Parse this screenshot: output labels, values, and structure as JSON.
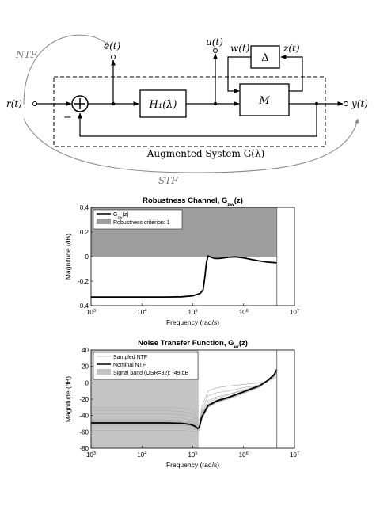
{
  "diagram": {
    "labels": {
      "ntf": "NTF",
      "stf": "STF",
      "r": "r(t)",
      "e": "e(t)",
      "u": "u(t)",
      "w": "w(t)",
      "z": "z(t)",
      "y": "y(t)",
      "minus": "−",
      "h1": "H₁(λ)",
      "delta": "Δ",
      "m": "M",
      "augmented": "Augmented System G(λ)"
    }
  },
  "chart_data": [
    {
      "type": "line",
      "title": "Robustness Channel, G",
      "title_sub": "zw",
      "title_tail": "(z)",
      "xlabel": "Frequency (rad/s)",
      "ylabel": "Magnitude (dB)",
      "xscale": "log",
      "xlim": [
        1000,
        10000000
      ],
      "ylim": [
        -0.4,
        0.4
      ],
      "xticks": [
        {
          "v": 1000,
          "label": "10",
          "sup": "3"
        },
        {
          "v": 10000,
          "label": "10",
          "sup": "4"
        },
        {
          "v": 100000,
          "label": "10",
          "sup": "5"
        },
        {
          "v": 1000000,
          "label": "10",
          "sup": "6"
        },
        {
          "v": 10000000,
          "label": "10",
          "sup": "7"
        }
      ],
      "yticks": [
        {
          "v": -0.4,
          "label": "-0.4"
        },
        {
          "v": -0.2,
          "label": "-0.2"
        },
        {
          "v": 0,
          "label": "0"
        },
        {
          "v": 0.2,
          "label": "0.2"
        },
        {
          "v": 0.4,
          "label": "0.4"
        }
      ],
      "legend_position": "top-left",
      "legend": [
        {
          "label": "G",
          "sub": "zw",
          "tail": "(z)"
        },
        {
          "label": "Robustness criterion: 1",
          "sub": "",
          "tail": ""
        }
      ],
      "band": {
        "y_from": 0,
        "y_to": 0.4,
        "x_from": 1000,
        "x_to": 4500000,
        "color": "#9e9e9e"
      },
      "vline": 4500000,
      "series": [
        {
          "x": [
            1000,
            10000,
            30000,
            60000,
            100000,
            140000,
            160000,
            175000,
            185000,
            200000,
            230000,
            270000,
            330000,
            500000,
            700000,
            1000000,
            1500000,
            2000000,
            3000000,
            4500000
          ],
          "y": [
            -0.33,
            -0.33,
            -0.33,
            -0.328,
            -0.32,
            -0.3,
            -0.27,
            -0.15,
            -0.05,
            0.005,
            -0.005,
            -0.015,
            -0.015,
            -0.006,
            -0.002,
            -0.01,
            -0.025,
            -0.035,
            -0.045,
            -0.05
          ],
          "color": "#000000"
        }
      ]
    },
    {
      "type": "line",
      "title": "Noise Transfer Function, G",
      "title_sub": "er",
      "title_tail": "(z)",
      "xlabel": "Frequency (rad/s)",
      "ylabel": "Magnitude (dB)",
      "xscale": "log",
      "xlim": [
        1000,
        10000000
      ],
      "ylim": [
        -80,
        40
      ],
      "xticks": [
        {
          "v": 1000,
          "label": "10",
          "sup": "3"
        },
        {
          "v": 10000,
          "label": "10",
          "sup": "4"
        },
        {
          "v": 100000,
          "label": "10",
          "sup": "5"
        },
        {
          "v": 1000000,
          "label": "10",
          "sup": "6"
        },
        {
          "v": 10000000,
          "label": "10",
          "sup": "7"
        }
      ],
      "yticks": [
        {
          "v": -80,
          "label": "-80"
        },
        {
          "v": -60,
          "label": "-60"
        },
        {
          "v": -40,
          "label": "-40"
        },
        {
          "v": -20,
          "label": "-20"
        },
        {
          "v": 0,
          "label": "0"
        },
        {
          "v": 20,
          "label": "20"
        },
        {
          "v": 40,
          "label": "40"
        }
      ],
      "legend_position": "top-left",
      "legend": [
        {
          "label": "Sampled NTF",
          "sub": "",
          "tail": ""
        },
        {
          "label": "Nominal NTF",
          "sub": "",
          "tail": ""
        },
        {
          "label": "Signal band (OSR=32): -49 dB",
          "sub": "",
          "tail": ""
        }
      ],
      "band": {
        "y_from": -80,
        "y_to": 40,
        "x_from": 1000,
        "x_to": 130000,
        "color": "#c4c4c4"
      },
      "vline": 4500000,
      "nominal": {
        "x": [
          1000,
          3000,
          10000,
          30000,
          60000,
          90000,
          110000,
          125000,
          135000,
          150000,
          200000,
          300000,
          500000,
          1000000,
          2000000,
          3000000,
          4000000,
          4500000
        ],
        "y": [
          -49,
          -49,
          -49,
          -49,
          -49.5,
          -51,
          -53,
          -56,
          -54,
          -42,
          -28,
          -22,
          -18,
          -11,
          -4,
          3,
          10,
          16
        ],
        "color": "#000000"
      },
      "sampled": [
        {
          "y": [
            -30,
            -30,
            -30,
            -30,
            -31,
            -33,
            -36,
            -44,
            -46,
            -36,
            -24,
            -19,
            -15,
            -9,
            -3,
            3,
            8,
            15
          ]
        },
        {
          "y": [
            -34,
            -34,
            -34,
            -34,
            -35,
            -37,
            -40,
            -48,
            -49,
            -38,
            -26,
            -21,
            -17,
            -10,
            -4,
            2,
            8,
            14
          ]
        },
        {
          "y": [
            -38,
            -38,
            -38,
            -38,
            -39,
            -41,
            -44,
            -51,
            -51,
            -40,
            -27,
            -21,
            -17,
            -11,
            -4,
            2,
            9,
            15
          ]
        },
        {
          "y": [
            -42,
            -42,
            -42,
            -42,
            -43,
            -45,
            -48,
            -53,
            -52,
            -41,
            -28,
            -22,
            -18,
            -11,
            -5,
            2,
            9,
            16
          ]
        },
        {
          "y": [
            -45,
            -45,
            -45,
            -45,
            -46,
            -48,
            -50,
            -54,
            -53,
            -42,
            -28,
            -22,
            -18,
            -11,
            -4,
            3,
            10,
            16
          ]
        },
        {
          "y": [
            -52,
            -52,
            -52,
            -52,
            -52,
            -53,
            -55,
            -57,
            -55,
            -43,
            -29,
            -23,
            -19,
            -12,
            -5,
            2,
            9,
            17
          ]
        },
        {
          "y": [
            -55,
            -55,
            -55,
            -55,
            -55,
            -56,
            -57,
            -58,
            -56,
            -44,
            -30,
            -23,
            -19,
            -12,
            -5,
            3,
            11,
            18
          ]
        },
        {
          "y": [
            -58,
            -58,
            -58,
            -58,
            -58,
            -59,
            -59,
            -60,
            -57,
            -45,
            -30,
            -24,
            -20,
            -13,
            -6,
            2,
            10,
            18
          ]
        },
        {
          "y": [
            -48,
            -48,
            -48,
            -48,
            -48,
            -50,
            -52,
            -55,
            -54,
            -30,
            -10,
            -6,
            -4,
            -2,
            0,
            2,
            5,
            8
          ]
        },
        {
          "y": [
            -46,
            -46,
            -46,
            -46,
            -47,
            -49,
            -51,
            -55,
            -54,
            -34,
            -16,
            -12,
            -10,
            -6,
            -3,
            2,
            7,
            12
          ]
        },
        {
          "y": [
            -50,
            -50,
            -50,
            -50,
            -50,
            -52,
            -54,
            -56,
            -55,
            -38,
            -22,
            -17,
            -14,
            -9,
            -4,
            2,
            8,
            13
          ]
        }
      ],
      "sampled_color": "#b0b0b0"
    }
  ]
}
